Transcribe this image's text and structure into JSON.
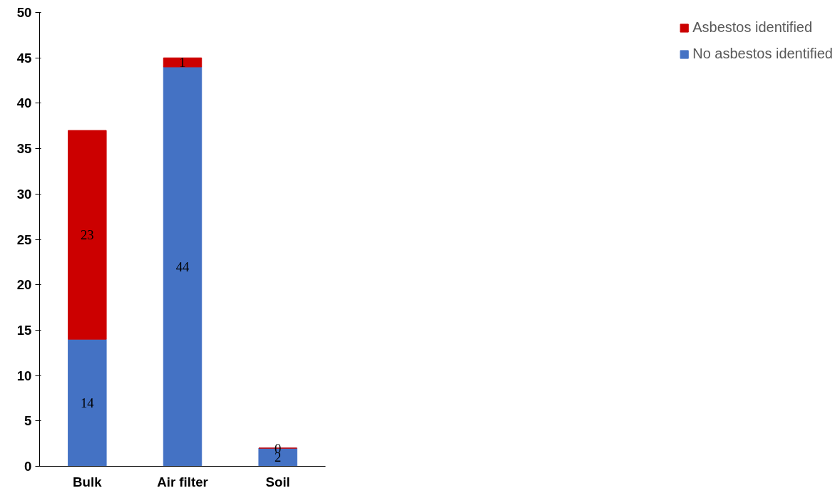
{
  "chart_data": {
    "type": "bar",
    "stacked": true,
    "categories": [
      "Bulk",
      "Air filter",
      "Soil"
    ],
    "series": [
      {
        "name": "No asbestos identified",
        "color": "#4472c4",
        "values": [
          14,
          44,
          2
        ]
      },
      {
        "name": "Asbestos identified",
        "color": "#cc0000",
        "values": [
          23,
          1,
          0
        ]
      }
    ],
    "ylim": [
      0,
      50
    ],
    "yticks": [
      0,
      5,
      10,
      15,
      20,
      25,
      30,
      35,
      40,
      45,
      50
    ],
    "grid": false,
    "legend": "right",
    "data_labels": true
  }
}
